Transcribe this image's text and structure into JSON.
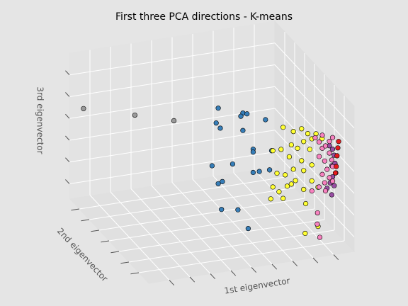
{
  "chart_data": {
    "type": "scatter3d",
    "title": "First three PCA directions - K-means",
    "xlabel": "1st eigenvector",
    "ylabel": "2nd eigenvector",
    "zlabel": "3rd eigenvector",
    "xlim": [
      0,
      1
    ],
    "ylim": [
      0,
      1
    ],
    "zlim": [
      0,
      1
    ],
    "xticks": [
      0.1,
      0.2,
      0.3,
      0.4,
      0.5,
      0.6,
      0.7,
      0.8,
      0.9
    ],
    "yticks": [
      0.125,
      0.25,
      0.375,
      0.5,
      0.625,
      0.75,
      0.875
    ],
    "zticks": [
      0.1,
      0.25,
      0.4,
      0.55,
      0.7,
      0.85
    ],
    "grid": true,
    "edgecolor": "#000000",
    "series": [
      {
        "color": "#999999",
        "x": [
          0.03,
          0.28,
          0.47
        ],
        "y": [
          0.9,
          0.9,
          0.9
        ],
        "z": [
          0.67,
          0.57,
          0.49
        ]
      },
      {
        "color": "#377eb8",
        "x": [
          0.57,
          0.69,
          0.71,
          0.68,
          0.56,
          0.58,
          0.8,
          0.69,
          0.74,
          0.74,
          0.83,
          0.54,
          0.64,
          0.74,
          0.77,
          0.82,
          0.59,
          0.57,
          0.47,
          0.55,
          0.6
        ],
        "y": [
          0.6,
          0.6,
          0.6,
          0.6,
          0.6,
          0.6,
          0.6,
          0.6,
          0.6,
          0.6,
          0.6,
          0.6,
          0.6,
          0.6,
          0.6,
          0.6,
          0.6,
          0.6,
          0.3,
          0.3,
          0.3
        ],
        "z": [
          0.73,
          0.67,
          0.66,
          0.65,
          0.63,
          0.59,
          0.6,
          0.55,
          0.41,
          0.39,
          0.38,
          0.34,
          0.33,
          0.25,
          0.25,
          0.25,
          0.22,
          0.21,
          0.23,
          0.21,
          0.07
        ]
      },
      {
        "color": "#ffff33",
        "x": [
          0.77,
          0.82,
          0.86,
          0.89,
          0.93,
          0.81,
          0.87,
          0.91,
          0.72,
          0.76,
          0.84,
          0.9,
          0.8,
          0.86,
          0.91,
          0.87,
          0.82,
          0.78,
          0.74,
          0.83,
          0.91,
          0.79,
          0.81,
          0.72,
          0.75,
          0.87,
          0.94,
          0.71,
          0.77,
          0.88,
          0.94,
          0.8,
          0.96
        ],
        "y": [
          0.3,
          0.3,
          0.3,
          0.3,
          0.3,
          0.3,
          0.3,
          0.3,
          0.3,
          0.3,
          0.3,
          0.3,
          0.3,
          0.3,
          0.3,
          0.3,
          0.3,
          0.3,
          0.3,
          0.3,
          0.3,
          0.3,
          0.3,
          0.3,
          0.3,
          0.3,
          0.3,
          0.3,
          0.3,
          0.3,
          0.3,
          0.1,
          0.3
        ],
        "z": [
          0.73,
          0.69,
          0.7,
          0.66,
          0.65,
          0.6,
          0.61,
          0.62,
          0.58,
          0.58,
          0.57,
          0.55,
          0.52,
          0.48,
          0.44,
          0.41,
          0.43,
          0.4,
          0.42,
          0.35,
          0.33,
          0.32,
          0.33,
          0.33,
          0.29,
          0.28,
          0.28,
          0.25,
          0.24,
          0.18,
          0.01,
          0.11,
          0.61
        ]
      },
      {
        "color": "#984ea3",
        "x": [
          0.98,
          0.98,
          0.98,
          0.98,
          0.98,
          0.98,
          0.98,
          0.98,
          0.98,
          0.98,
          0.98
        ],
        "y": [
          0.26,
          0.22,
          0.2,
          0.23,
          0.18,
          0.25,
          0.2,
          0.29,
          0.23,
          0.19,
          0.22
        ],
        "z": [
          0.58,
          0.58,
          0.55,
          0.46,
          0.44,
          0.33,
          0.34,
          0.27,
          0.26,
          0.5,
          0.39
        ]
      },
      {
        "color": "#f781bf",
        "x": [
          0.98,
          0.98,
          0.98,
          0.98,
          0.98,
          0.98,
          0.98,
          0.98,
          0.98,
          0.98,
          0.98,
          0.98,
          0.98,
          0.98,
          0.98,
          0.98,
          0.98,
          0.98,
          0.94,
          0.91,
          0.98,
          0.98,
          0.98
        ],
        "y": [
          0.44,
          0.39,
          0.35,
          0.31,
          0.26,
          0.39,
          0.32,
          0.23,
          0.29,
          0.35,
          0.22,
          0.26,
          0.32,
          0.39,
          0.22,
          0.31,
          0.48,
          0.41,
          0.31,
          0.2,
          0.26,
          0.22,
          0.35
        ],
        "z": [
          0.53,
          0.53,
          0.51,
          0.55,
          0.53,
          0.43,
          0.44,
          0.5,
          0.4,
          0.33,
          0.46,
          0.36,
          0.29,
          0.22,
          0.36,
          0.24,
          0.14,
          0.03,
          0.02,
          0,
          0.61,
          0.66,
          0.6
        ]
      },
      {
        "color": "#e41a1c",
        "x": [
          0.99,
          0.99,
          0.99,
          0.99,
          0.99
        ],
        "y": [
          0.17,
          0.18,
          0.19,
          0.2,
          0.21
        ],
        "z": [
          0.66,
          0.61,
          0.55,
          0.47,
          0.42
        ]
      }
    ]
  }
}
